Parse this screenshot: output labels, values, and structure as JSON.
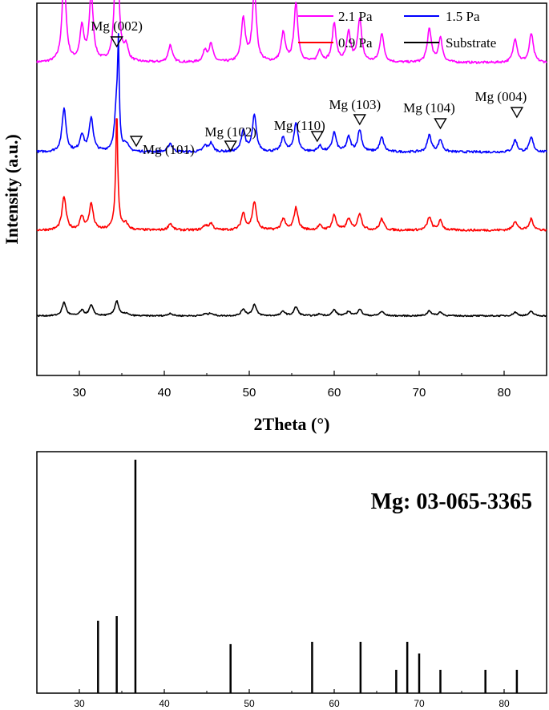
{
  "chart_data": [
    {
      "type": "line",
      "xlabel": "2Theta (°)",
      "ylabel": "Intensity (a.u.)",
      "xlim": [
        25,
        85
      ],
      "x_ticks": [
        "30",
        "40",
        "50",
        "60",
        "70",
        "80"
      ],
      "y_ticks_labeled": false,
      "legend": {
        "placement": "top-right",
        "entries": [
          {
            "label": "2.1 Pa",
            "color": "#ff00ff"
          },
          {
            "label": "1.5 Pa",
            "color": "#0000ff"
          },
          {
            "label": "0.9 Pa",
            "color": "#ff0000"
          },
          {
            "label": "Substrate",
            "color": "#000000"
          }
        ]
      },
      "annotations": [
        {
          "text": "Mg (002)",
          "x": 34.4
        },
        {
          "text": "Mg (101)",
          "x": 36.7
        },
        {
          "text": "Mg (102)",
          "x": 47.8
        },
        {
          "text": "Mg (110)",
          "x": 58.0
        },
        {
          "text": "Mg (103)",
          "x": 63.0
        },
        {
          "text": "Mg (104)",
          "x": 72.5
        },
        {
          "text": "Mg (004)",
          "x": 81.5
        }
      ],
      "peaks": [
        {
          "x": 28.2,
          "h": 0.9
        },
        {
          "x": 30.3,
          "h": 0.35
        },
        {
          "x": 31.4,
          "h": 0.7
        },
        {
          "x": 34.4,
          "h": 1.0
        },
        {
          "x": 35.5,
          "h": 0.15
        },
        {
          "x": 40.7,
          "h": 0.18
        },
        {
          "x": 44.8,
          "h": 0.12
        },
        {
          "x": 45.5,
          "h": 0.18
        },
        {
          "x": 49.3,
          "h": 0.45
        },
        {
          "x": 50.6,
          "h": 0.75
        },
        {
          "x": 54.0,
          "h": 0.3
        },
        {
          "x": 55.5,
          "h": 0.6
        },
        {
          "x": 58.3,
          "h": 0.12
        },
        {
          "x": 60.0,
          "h": 0.4
        },
        {
          "x": 61.7,
          "h": 0.3
        },
        {
          "x": 63.0,
          "h": 0.45
        },
        {
          "x": 65.6,
          "h": 0.3
        },
        {
          "x": 71.2,
          "h": 0.35
        },
        {
          "x": 72.5,
          "h": 0.25
        },
        {
          "x": 81.3,
          "h": 0.25
        },
        {
          "x": 83.2,
          "h": 0.3
        }
      ],
      "series": [
        {
          "name": "2.1 Pa",
          "color": "#ff00ff",
          "offset": 0.84,
          "scale": 0.26,
          "sharp_peak": {
            "x": 34.4,
            "h": 0.42
          }
        },
        {
          "name": "1.5 Pa",
          "color": "#0000ff",
          "offset": 0.6,
          "scale": 0.13,
          "sharp_peak": {
            "x": 34.6,
            "h": 0.23
          }
        },
        {
          "name": "0.9 Pa",
          "color": "#ff0000",
          "offset": 0.39,
          "scale": 0.1,
          "sharp_peak": {
            "x": 34.4,
            "h": 0.23
          }
        },
        {
          "name": "Substrate",
          "color": "#000000",
          "offset": 0.16,
          "scale": 0.04,
          "sharp_peak": {
            "x": 34.4,
            "h": 0.0
          }
        }
      ]
    },
    {
      "type": "bar",
      "title": "Mg: 03-065-3365",
      "xlim": [
        25,
        85
      ],
      "ylim": [
        0,
        100
      ],
      "x_ticks": [
        "30",
        "40",
        "50",
        "60",
        "70",
        "80"
      ],
      "x": [
        32.2,
        34.4,
        36.6,
        47.8,
        57.4,
        63.1,
        67.3,
        68.6,
        70.0,
        72.5,
        77.8,
        81.5
      ],
      "values": [
        31,
        33,
        100,
        21,
        22,
        22,
        10,
        22,
        17,
        10,
        10,
        10
      ]
    }
  ]
}
